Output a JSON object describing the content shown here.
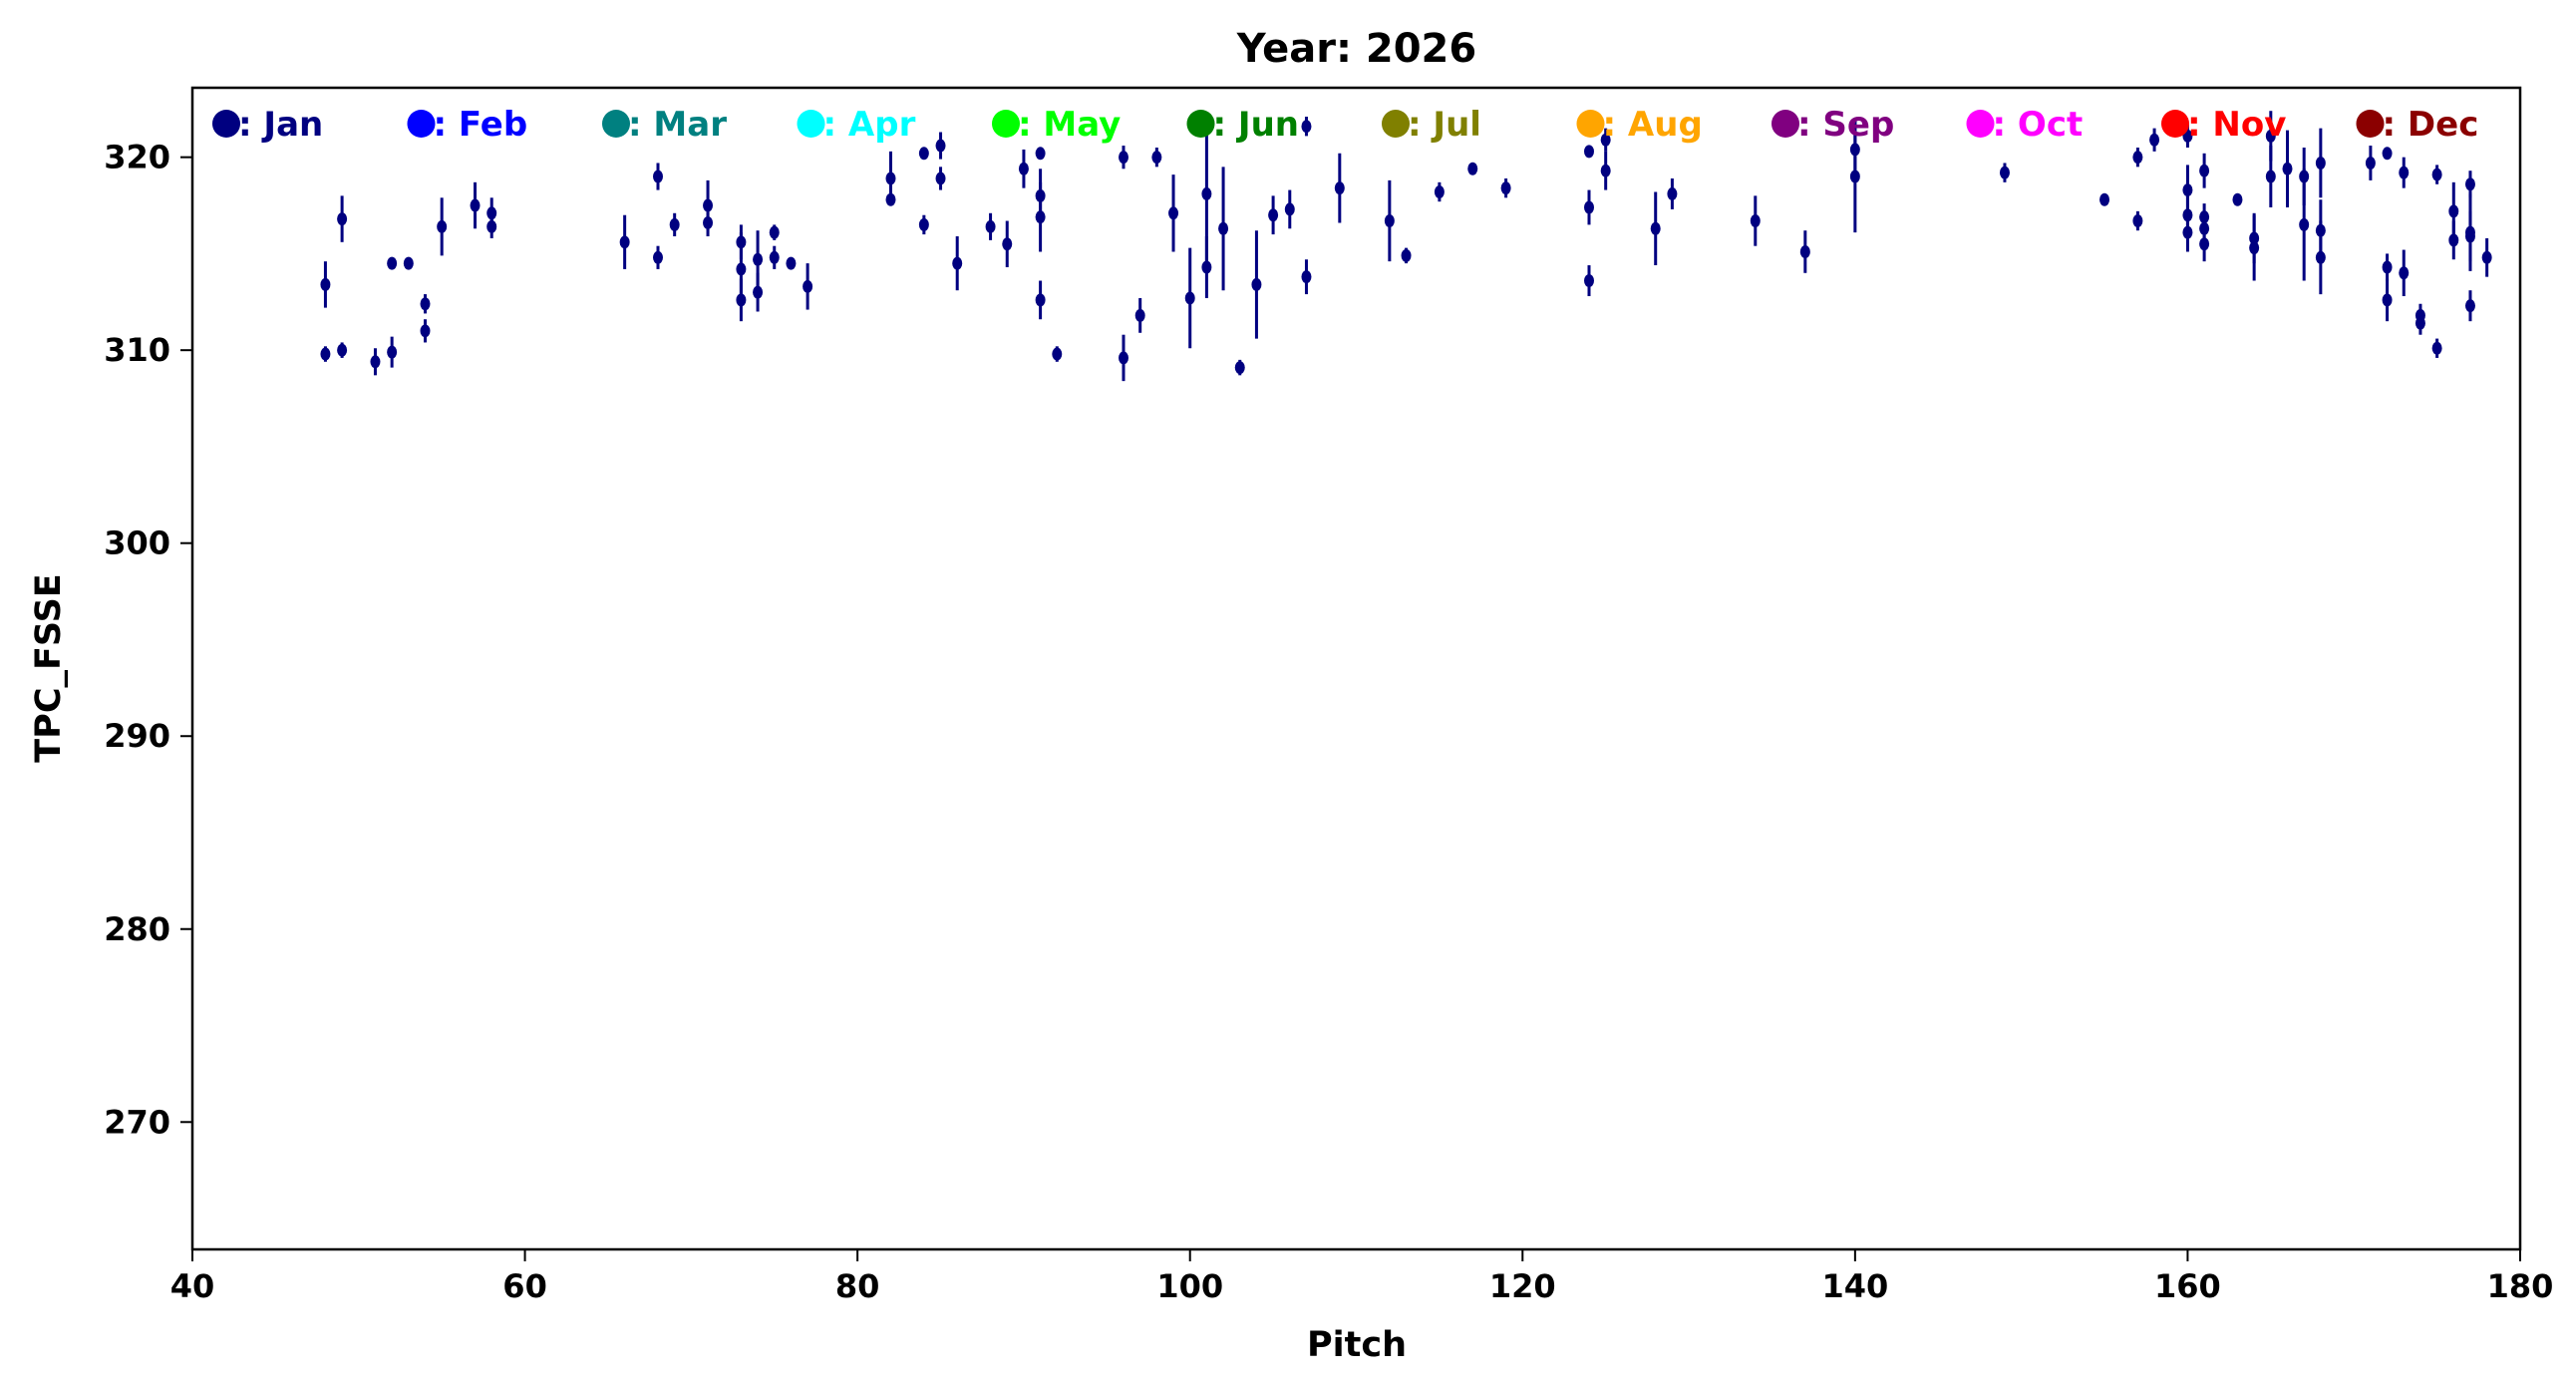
{
  "chart_data": {
    "type": "scatter",
    "title": "Year: 2026",
    "xlabel": "Pitch",
    "ylabel": "TPC_FSSE",
    "xlim": [
      40,
      180
    ],
    "ylim": [
      263.4,
      323.6
    ],
    "xticks": [
      40,
      60,
      80,
      100,
      120,
      140,
      160,
      180
    ],
    "yticks": [
      270,
      280,
      290,
      300,
      310,
      320
    ],
    "grid": false,
    "legend_position": "top",
    "legend": [
      {
        "label": ": Jan",
        "color": "#000080"
      },
      {
        "label": ": Feb",
        "color": "#0000ff"
      },
      {
        "label": ": Mar",
        "color": "#008080"
      },
      {
        "label": ": Apr",
        "color": "#00ffff"
      },
      {
        "label": ": May",
        "color": "#00ff00"
      },
      {
        "label": ": Jun",
        "color": "#008000"
      },
      {
        "label": ": Jul",
        "color": "#808000"
      },
      {
        "label": ": Aug",
        "color": "#ffa500"
      },
      {
        "label": ": Sep",
        "color": "#800080"
      },
      {
        "label": ": Oct",
        "color": "#ff00ff"
      },
      {
        "label": ": Nov",
        "color": "#ff0000"
      },
      {
        "label": ": Dec",
        "color": "#8b0000"
      }
    ],
    "series": [
      {
        "month": "Jan",
        "color": "#000080",
        "points": [
          [
            48,
            313.4,
            1.2
          ],
          [
            48,
            309.8,
            0.4
          ],
          [
            49,
            316.8,
            1.2
          ],
          [
            49,
            310.0,
            0.4
          ],
          [
            51,
            309.4,
            0.7
          ],
          [
            52,
            314.5,
            0.3
          ],
          [
            52,
            309.9,
            0.8
          ],
          [
            53,
            314.5,
            0.3
          ],
          [
            54,
            312.4,
            0.5
          ],
          [
            54,
            311.0,
            0.6
          ],
          [
            55,
            316.4,
            1.5
          ],
          [
            57,
            317.5,
            1.2
          ],
          [
            58,
            317.1,
            0.8
          ],
          [
            58,
            316.4,
            0.6
          ],
          [
            66,
            315.6,
            1.4
          ],
          [
            68,
            319.0,
            0.7
          ],
          [
            68,
            314.8,
            0.6
          ],
          [
            69,
            316.5,
            0.6
          ],
          [
            71,
            317.5,
            1.3
          ],
          [
            71,
            316.6,
            0.7
          ],
          [
            73,
            315.6,
            0.9
          ],
          [
            73,
            314.2,
            1.9
          ],
          [
            73,
            312.6,
            1.1
          ],
          [
            74,
            314.7,
            1.5
          ],
          [
            74,
            313.0,
            1.0
          ],
          [
            75,
            316.1,
            0.4
          ],
          [
            75,
            314.8,
            0.6
          ],
          [
            76,
            314.5,
            0.3
          ],
          [
            77,
            313.3,
            1.2
          ],
          [
            82,
            318.9,
            1.4
          ],
          [
            82,
            317.8,
            0.3
          ],
          [
            84,
            320.2,
            0.3
          ],
          [
            84,
            316.5,
            0.5
          ],
          [
            85,
            320.6,
            0.7
          ],
          [
            85,
            318.9,
            0.6
          ],
          [
            86,
            314.5,
            1.4
          ],
          [
            88,
            316.4,
            0.7
          ],
          [
            89,
            315.5,
            1.2
          ],
          [
            90,
            319.4,
            1.0
          ],
          [
            91,
            320.2,
            0.3
          ],
          [
            91,
            318.0,
            1.4
          ],
          [
            91,
            316.9,
            1.8
          ],
          [
            91,
            312.6,
            1.0
          ],
          [
            92,
            309.8,
            0.4
          ],
          [
            96,
            320.0,
            0.6
          ],
          [
            96,
            309.6,
            1.2
          ],
          [
            97,
            311.8,
            0.9
          ],
          [
            98,
            320.0,
            0.5
          ],
          [
            99,
            317.1,
            2.0
          ],
          [
            100,
            312.7,
            2.6
          ],
          [
            101,
            318.1,
            4.0
          ],
          [
            101,
            314.3,
            1.6
          ],
          [
            102,
            316.3,
            3.2
          ],
          [
            103,
            309.1,
            0.4
          ],
          [
            104,
            313.4,
            2.8
          ],
          [
            105,
            317.0,
            1.0
          ],
          [
            106,
            317.3,
            1.0
          ],
          [
            107,
            321.6,
            0.5
          ],
          [
            107,
            313.8,
            0.9
          ],
          [
            109,
            318.4,
            1.8
          ],
          [
            112,
            316.7,
            2.1
          ],
          [
            113,
            314.9,
            0.4
          ],
          [
            115,
            318.2,
            0.5
          ],
          [
            117,
            319.4,
            0.3
          ],
          [
            119,
            318.4,
            0.5
          ],
          [
            124,
            320.3,
            0.3
          ],
          [
            124,
            317.4,
            0.9
          ],
          [
            124,
            313.6,
            0.8
          ],
          [
            125,
            320.9,
            0.6
          ],
          [
            125,
            319.3,
            1.0
          ],
          [
            128,
            316.3,
            1.9
          ],
          [
            129,
            318.1,
            0.8
          ],
          [
            134,
            316.7,
            1.3
          ],
          [
            137,
            315.1,
            1.1
          ],
          [
            140,
            320.4,
            1.5
          ],
          [
            140,
            319.0,
            2.9
          ],
          [
            149,
            319.2,
            0.5
          ],
          [
            155,
            317.8,
            0.2
          ],
          [
            157,
            320.0,
            0.5
          ],
          [
            157,
            316.7,
            0.5
          ],
          [
            158,
            320.9,
            0.6
          ],
          [
            160,
            321.1,
            0.6
          ],
          [
            160,
            318.3,
            1.3
          ],
          [
            160,
            317.0,
            1.0
          ],
          [
            160,
            316.1,
            1.0
          ],
          [
            161,
            319.3,
            0.9
          ],
          [
            161,
            316.9,
            0.7
          ],
          [
            161,
            316.3,
            0.6
          ],
          [
            161,
            315.5,
            0.9
          ],
          [
            163,
            317.8,
            0.2
          ],
          [
            164,
            315.8,
            1.3
          ],
          [
            164,
            315.3,
            1.7
          ],
          [
            165,
            321.1,
            1.3
          ],
          [
            165,
            319.0,
            1.6
          ],
          [
            166,
            319.4,
            2.0
          ],
          [
            167,
            319.0,
            1.5
          ],
          [
            167,
            316.5,
            2.9
          ],
          [
            168,
            319.7,
            1.8
          ],
          [
            168,
            316.2,
            1.6
          ],
          [
            168,
            314.8,
            1.9
          ],
          [
            171,
            319.7,
            0.9
          ],
          [
            172,
            320.2,
            0.2
          ],
          [
            172,
            314.3,
            0.7
          ],
          [
            172,
            312.6,
            1.1
          ],
          [
            173,
            319.2,
            0.8
          ],
          [
            173,
            314.0,
            1.2
          ],
          [
            174,
            311.8,
            0.6
          ],
          [
            174,
            311.4,
            0.6
          ],
          [
            175,
            319.1,
            0.5
          ],
          [
            175,
            310.1,
            0.5
          ],
          [
            176,
            317.2,
            1.5
          ],
          [
            176,
            315.7,
            1.0
          ],
          [
            177,
            318.6,
            0.7
          ],
          [
            177,
            316.1,
            2.0
          ],
          [
            177,
            315.9,
            1.3
          ],
          [
            177,
            312.3,
            0.8
          ],
          [
            178,
            314.8,
            1.0
          ]
        ]
      }
    ]
  }
}
